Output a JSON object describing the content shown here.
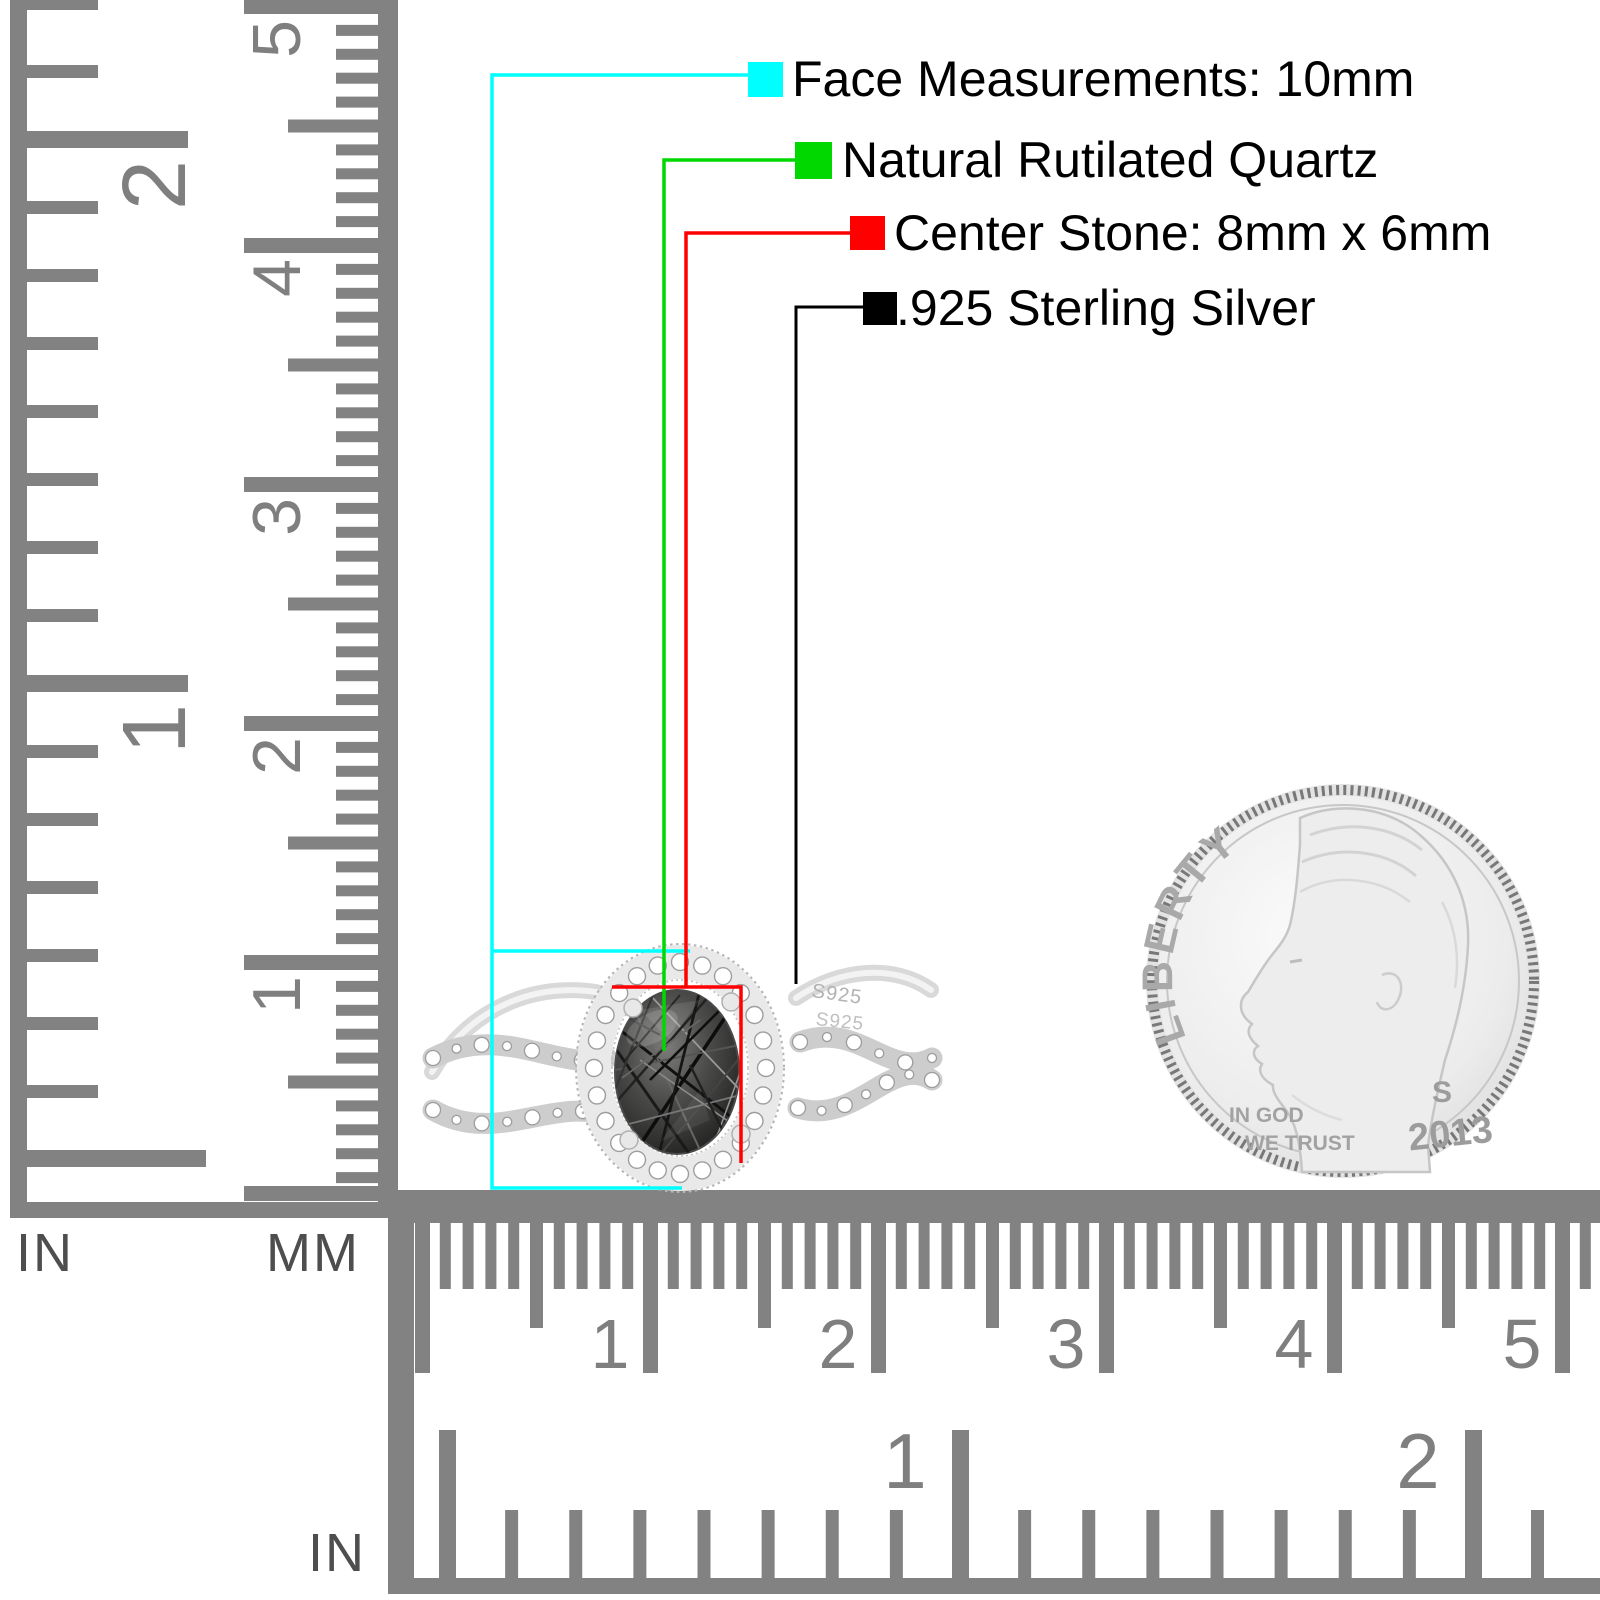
{
  "annotations": [
    {
      "name": "face-measurements",
      "label": "Face Measurements: 10mm",
      "color": "#00ffff"
    },
    {
      "name": "stone-type",
      "label": "Natural Rutilated Quartz",
      "color": "#00d800"
    },
    {
      "name": "center-stone",
      "label": "Center Stone: 8mm x 6mm",
      "color": "#ff0000"
    },
    {
      "name": "metal",
      "label": ".925 Sterling Silver",
      "color": "#000000"
    }
  ],
  "vertical_ruler": {
    "left_unit": "IN",
    "right_unit": "MM",
    "inch_labels": [
      "2",
      "1"
    ],
    "cm_labels": [
      "5",
      "4",
      "3",
      "2",
      "1"
    ]
  },
  "horizontal_ruler": {
    "unit": "IN",
    "cm_labels": [
      "1",
      "2",
      "3",
      "4",
      "5"
    ],
    "inch_labels": [
      "1",
      "2"
    ]
  },
  "ring": {
    "engraving": "S925",
    "engraving2": "S925"
  },
  "coin": {
    "legend": "LIBERTY",
    "motto_line1": "IN GOD",
    "motto_line2": "WE TRUST",
    "mint_mark": "S",
    "year": "2013"
  },
  "colors": {
    "ruler_marks": "#828282",
    "ruler_numbers": "#7f7f7f",
    "unit_labels": "#4e4e4e"
  }
}
